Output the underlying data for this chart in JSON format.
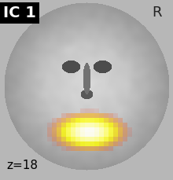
{
  "title_text": "IC 1",
  "z_label": "z=18",
  "r_label": "R",
  "title_bg": "#000000",
  "title_color": "#ffffff",
  "label_color": "#000000",
  "z_label_color": "#000000",
  "figsize": [
    2.2,
    2.29
  ],
  "dpi": 100
}
